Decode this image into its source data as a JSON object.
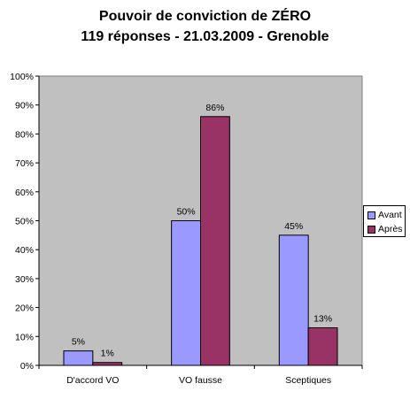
{
  "chart_data": {
    "type": "bar",
    "title": "Pouvoir de conviction de ZÉRO",
    "subtitle": "119 réponses - 21.03.2009 - Grenoble",
    "categories": [
      "D'accord VO",
      "VO fausse",
      "Sceptiques"
    ],
    "series": [
      {
        "name": "Avant",
        "values": [
          5,
          50,
          45
        ],
        "labels": [
          "5%",
          "50%",
          "45%"
        ],
        "color": "#9999ff"
      },
      {
        "name": "Après",
        "values": [
          1,
          86,
          13
        ],
        "labels": [
          "1%",
          "86%",
          "13%"
        ],
        "color": "#993366"
      }
    ],
    "ylim": [
      0,
      100
    ],
    "yticks": [
      "0%",
      "10%",
      "20%",
      "30%",
      "40%",
      "50%",
      "60%",
      "70%",
      "80%",
      "90%",
      "100%"
    ],
    "grid": false,
    "plot_background": "#c0c0c0",
    "legend_position": "right"
  }
}
